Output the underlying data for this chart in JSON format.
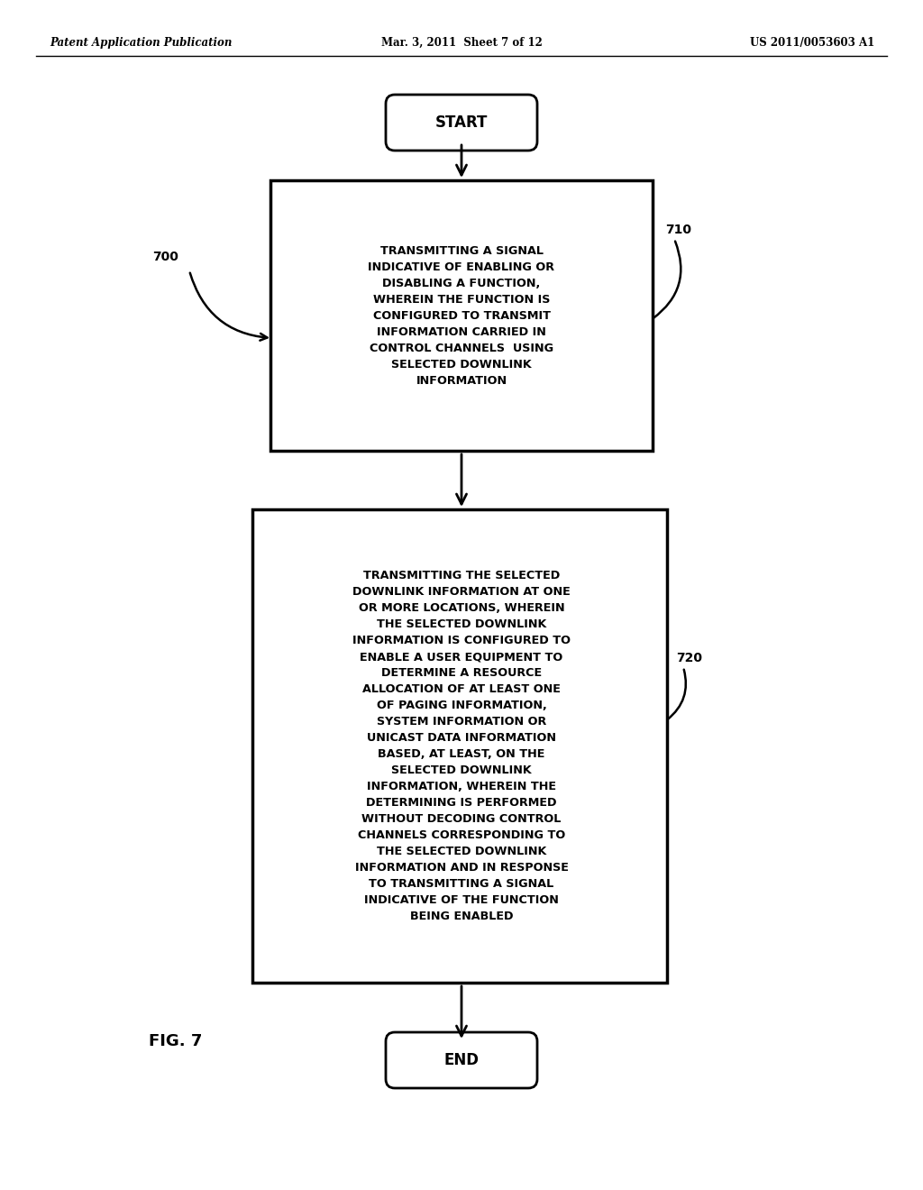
{
  "background_color": "#ffffff",
  "header_left": "Patent Application Publication",
  "header_center": "Mar. 3, 2011  Sheet 7 of 12",
  "header_right": "US 2011/0053603 A1",
  "figure_label": "FIG. 7",
  "start_text": "START",
  "end_text": "END",
  "box1_text": "TRANSMITTING A SIGNAL\nINDICATIVE OF ENABLING OR\nDISABLING A FUNCTION,\nWHEREIN THE FUNCTION IS\nCONFIGURED TO TRANSMIT\nINFORMATION CARRIED IN\nCONTROL CHANNELS  USING\nSELECTED DOWNLINK\nINFORMATION",
  "box2_text": "TRANSMITTING THE SELECTED\nDOWNLINK INFORMATION AT ONE\nOR MORE LOCATIONS, WHEREIN\nTHE SELECTED DOWNLINK\nINFORMATION IS CONFIGURED TO\nENABLE A USER EQUIPMENT TO\nDETERMINE A RESOURCE\nALLOCATION OF AT LEAST ONE\nOF PAGING INFORMATION,\nSYSTEM INFORMATION OR\nUNICAST DATA INFORMATION\nBASED, AT LEAST, ON THE\nSELECTED DOWNLINK\nINFORMATION, WHEREIN THE\nDETERMINING IS PERFORMED\nWITHOUT DECODING CONTROL\nCHANNELS CORRESPONDING TO\nTHE SELECTED DOWNLINK\nINFORMATION AND IN RESPONSE\nTO TRANSMITTING A SIGNAL\nINDICATIVE OF THE FUNCTION\nBEING ENABLED",
  "label_700": "700",
  "label_710": "710",
  "label_720": "720"
}
